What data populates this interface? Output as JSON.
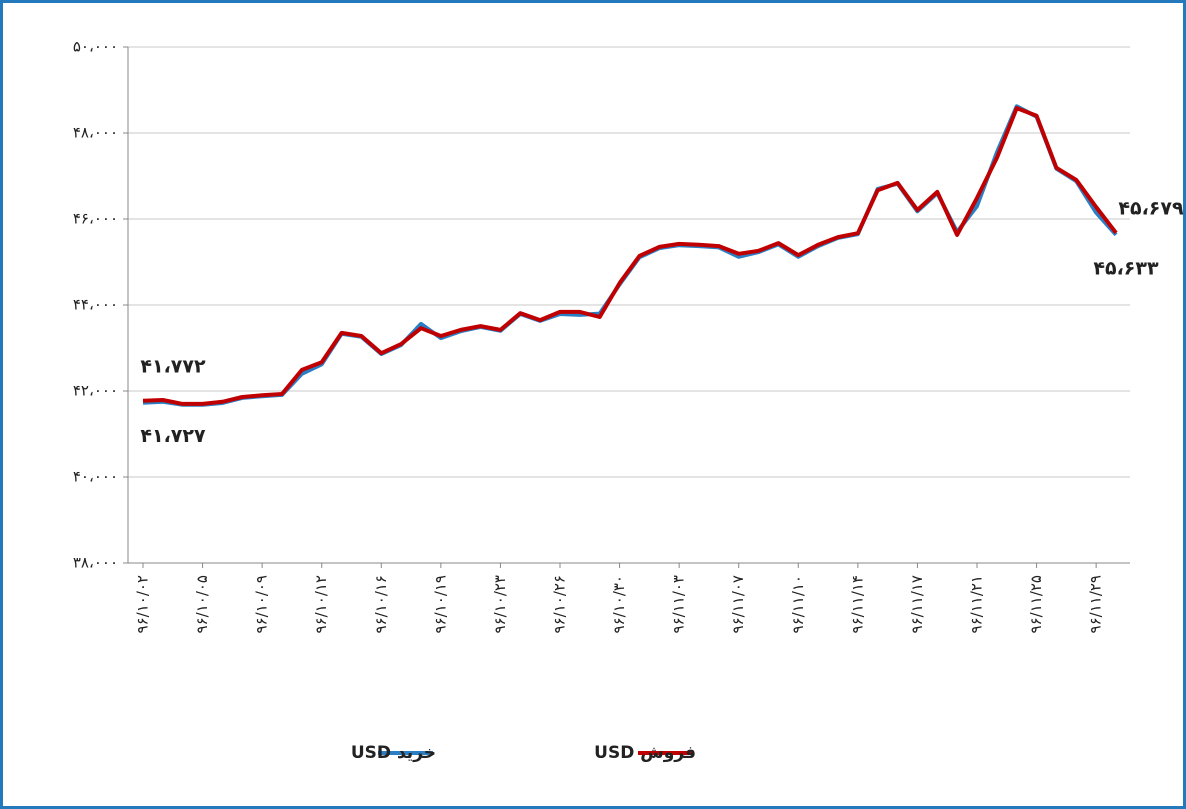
{
  "chart_data": {
    "type": "line",
    "categories": [
      "۹۶/۱۰/۰۲",
      null,
      null,
      "۹۶/۱۰/۰۵",
      null,
      null,
      "۹۶/۱۰/۰۹",
      null,
      null,
      "۹۶/۱۰/۱۲",
      null,
      null,
      "۹۶/۱۰/۱۶",
      null,
      null,
      "۹۶/۱۰/۱۹",
      null,
      null,
      "۹۶/۱۰/۲۳",
      null,
      null,
      "۹۶/۱۰/۲۶",
      null,
      null,
      "۹۶/۱۰/۳۰",
      null,
      null,
      "۹۶/۱۱/۰۳",
      null,
      null,
      "۹۶/۱۱/۰۷",
      null,
      null,
      "۹۶/۱۱/۱۰",
      null,
      null,
      "۹۶/۱۱/۱۴",
      null,
      null,
      "۹۶/۱۱/۱۷",
      null,
      null,
      "۹۶/۱۱/۲۱",
      null,
      null,
      "۹۶/۱۱/۲۵",
      null,
      null,
      "۹۶/۱۱/۲۹",
      null
    ],
    "series": [
      {
        "name": "خرید USD",
        "color": "#2a7fc4",
        "values": [
          41727,
          41750,
          41680,
          41680,
          41720,
          41840,
          41880,
          41910,
          42400,
          42620,
          43330,
          43260,
          42860,
          43070,
          43560,
          43230,
          43390,
          43490,
          43400,
          43790,
          43630,
          43790,
          43770,
          43800,
          44480,
          45110,
          45320,
          45390,
          45370,
          45340,
          45120,
          45230,
          45410,
          45120,
          45370,
          45560,
          45650,
          46700,
          46820,
          46180,
          46600,
          45700,
          46300,
          47550,
          48620,
          48380,
          47170,
          46880,
          46150,
          45633
        ],
        "value_labels": [
          "۴۱،۷۲۷",
          null,
          null,
          null,
          null,
          null,
          null,
          null,
          null,
          null,
          null,
          null,
          null,
          null,
          null,
          null,
          null,
          null,
          null,
          null,
          null,
          null,
          null,
          null,
          null,
          null,
          null,
          null,
          null,
          null,
          null,
          null,
          null,
          null,
          null,
          null,
          null,
          null,
          null,
          null,
          null,
          null,
          null,
          null,
          null,
          null,
          null,
          null,
          null,
          "۴۵،۶۳۳"
        ]
      },
      {
        "name": "فروش USD",
        "color": "#c00000",
        "values": [
          41772,
          41790,
          41700,
          41700,
          41750,
          41860,
          41900,
          41930,
          42490,
          42670,
          43350,
          43280,
          42880,
          43090,
          43460,
          43280,
          43420,
          43510,
          43420,
          43810,
          43650,
          43840,
          43840,
          43720,
          44510,
          45140,
          45350,
          45420,
          45400,
          45370,
          45190,
          45260,
          45440,
          45160,
          45400,
          45580,
          45670,
          46670,
          46840,
          46210,
          46630,
          45630,
          46490,
          47420,
          48580,
          48400,
          47190,
          46910,
          46280,
          45679
        ],
        "value_labels": [
          "۴۱،۷۷۲",
          null,
          null,
          null,
          null,
          null,
          null,
          null,
          null,
          null,
          null,
          null,
          null,
          null,
          null,
          null,
          null,
          null,
          null,
          null,
          null,
          null,
          null,
          null,
          null,
          null,
          null,
          null,
          null,
          null,
          null,
          null,
          null,
          null,
          null,
          null,
          null,
          null,
          null,
          null,
          null,
          null,
          null,
          null,
          null,
          null,
          null,
          null,
          null,
          "۴۵،۶۷۹"
        ]
      }
    ],
    "ylim": [
      38000,
      50000
    ],
    "yticks": [
      {
        "value": 38000,
        "label": "۳۸،۰۰۰"
      },
      {
        "value": 40000,
        "label": "۴۰،۰۰۰"
      },
      {
        "value": 42000,
        "label": "۴۲،۰۰۰"
      },
      {
        "value": 44000,
        "label": "۴۴،۰۰۰"
      },
      {
        "value": 46000,
        "label": "۴۶،۰۰۰"
      },
      {
        "value": 48000,
        "label": "۴۸،۰۰۰"
      },
      {
        "value": 50000,
        "label": "۵۰،۰۰۰"
      }
    ],
    "grid": true,
    "legend": "bottom"
  }
}
